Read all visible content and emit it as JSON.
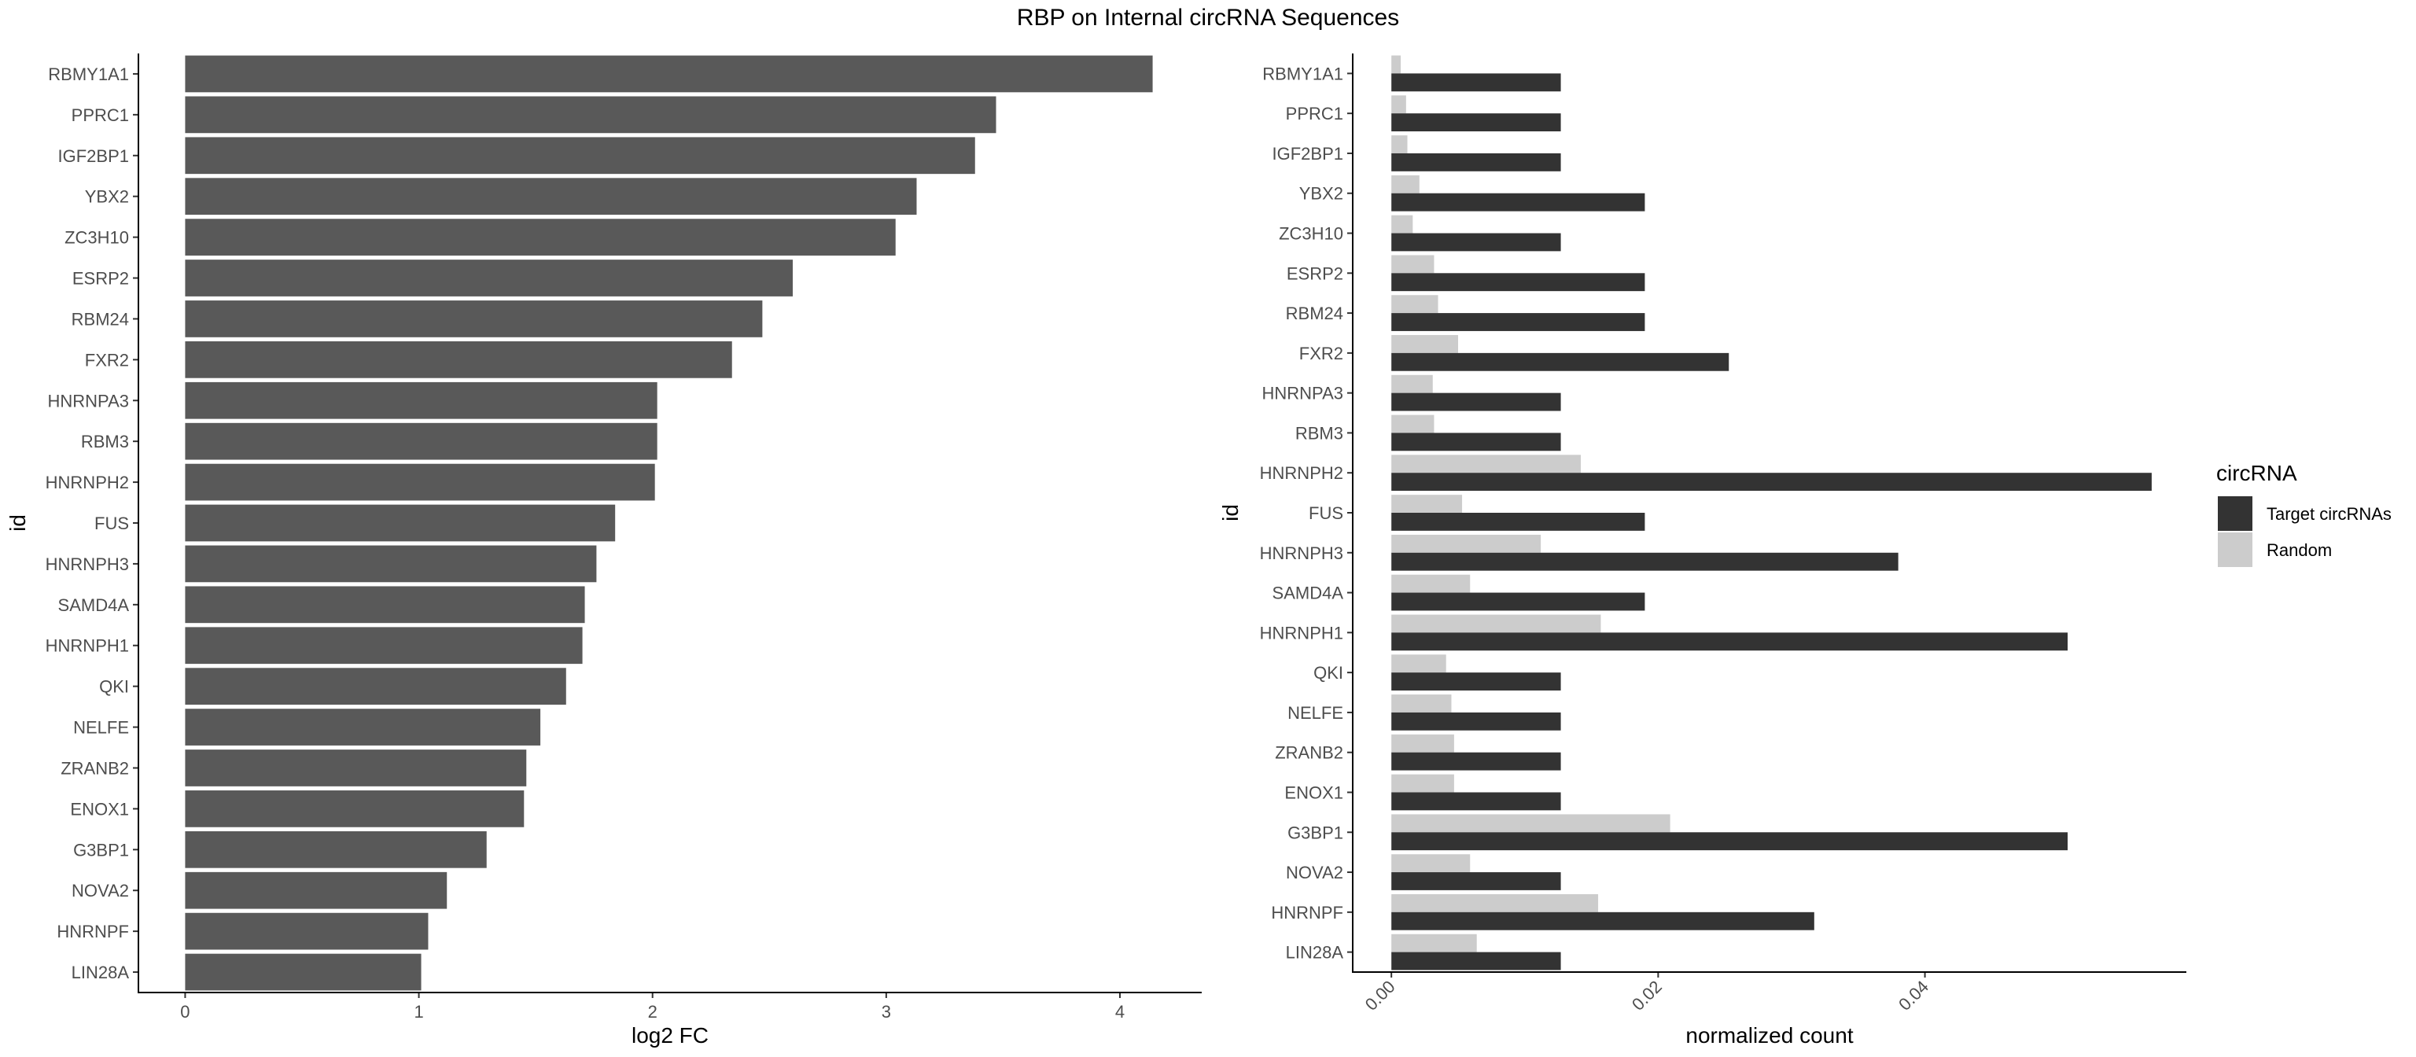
{
  "chart_data": [
    {
      "type": "bar",
      "orientation": "horizontal",
      "title": "RBP on Internal circRNA Sequences",
      "xlabel": "log2 FC",
      "ylabel": "id",
      "xlim": [
        -0.2,
        4.35
      ],
      "xticks": [
        0,
        1,
        2,
        3,
        4
      ],
      "xtick_labels": [
        "0",
        "1",
        "2",
        "3",
        "4"
      ],
      "categories": [
        "RBMY1A1",
        "PPRC1",
        "IGF2BP1",
        "YBX2",
        "ZC3H10",
        "ESRP2",
        "RBM24",
        "FXR2",
        "HNRNPA3",
        "RBM3",
        "HNRNPH2",
        "FUS",
        "HNRNPH3",
        "SAMD4A",
        "HNRNPH1",
        "QKI",
        "NELFE",
        "ZRANB2",
        "ENOX1",
        "G3BP1",
        "NOVA2",
        "HNRNPF",
        "LIN28A"
      ],
      "values": [
        4.14,
        3.47,
        3.38,
        3.13,
        3.04,
        2.6,
        2.47,
        2.34,
        2.02,
        2.02,
        2.01,
        1.84,
        1.76,
        1.71,
        1.7,
        1.63,
        1.52,
        1.46,
        1.45,
        1.29,
        1.12,
        1.04,
        1.01
      ],
      "colors": {
        "bar": "#595959"
      },
      "grid": false
    },
    {
      "type": "bar",
      "orientation": "horizontal",
      "xlabel": "normalized count",
      "ylabel": "id",
      "xlim": [
        -0.0029,
        0.0596
      ],
      "xticks": [
        0,
        0.02,
        0.04
      ],
      "xtick_labels": [
        "0.00",
        "0.02",
        "0.04"
      ],
      "categories": [
        "RBMY1A1",
        "PPRC1",
        "IGF2BP1",
        "YBX2",
        "ZC3H10",
        "ESRP2",
        "RBM24",
        "FXR2",
        "HNRNPA3",
        "RBM3",
        "HNRNPH2",
        "FUS",
        "HNRNPH3",
        "SAMD4A",
        "HNRNPH1",
        "QKI",
        "NELFE",
        "ZRANB2",
        "ENOX1",
        "G3BP1",
        "NOVA2",
        "HNRNPF",
        "LIN28A"
      ],
      "series": [
        {
          "name": "Target circRNAs",
          "color": "#333333",
          "values": [
            0.0127,
            0.0127,
            0.0127,
            0.019,
            0.0127,
            0.019,
            0.019,
            0.0253,
            0.0127,
            0.0127,
            0.057,
            0.019,
            0.038,
            0.019,
            0.0507,
            0.0127,
            0.0127,
            0.0127,
            0.0127,
            0.0507,
            0.0127,
            0.0317,
            0.0127
          ]
        },
        {
          "name": "Random",
          "color": "#cccccc",
          "values": [
            0.0007,
            0.0011,
            0.0012,
            0.0021,
            0.0016,
            0.0032,
            0.0035,
            0.005,
            0.0031,
            0.0032,
            0.0142,
            0.0053,
            0.0112,
            0.0059,
            0.0157,
            0.0041,
            0.0045,
            0.0047,
            0.0047,
            0.0209,
            0.0059,
            0.0155,
            0.0064
          ]
        }
      ],
      "legend": {
        "title": "circRNA",
        "placement": "right"
      },
      "grid": false
    }
  ]
}
